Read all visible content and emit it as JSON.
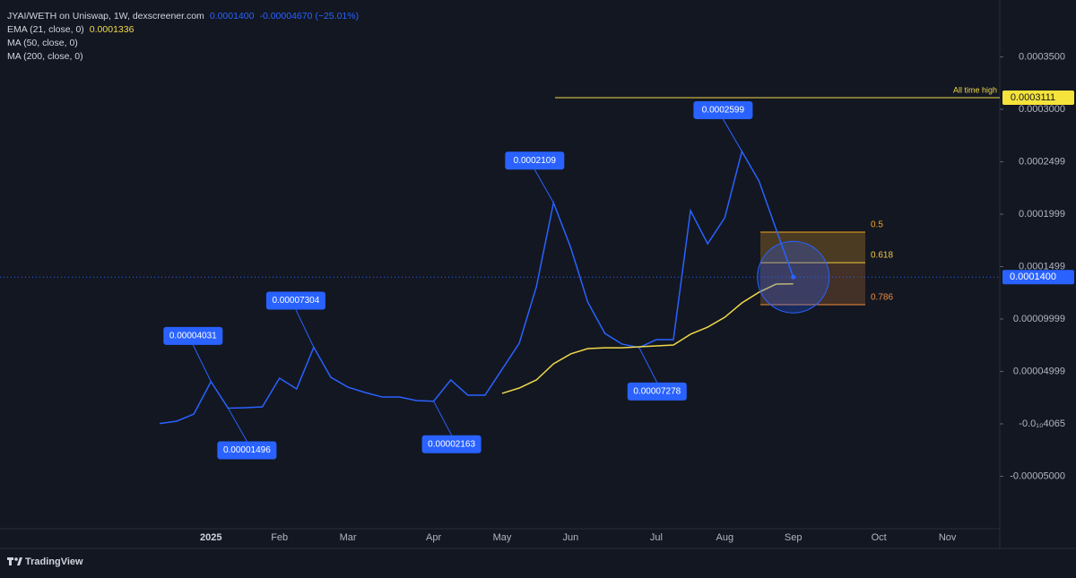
{
  "chart_data": {
    "type": "line",
    "title": "JYAI/WETH on Uniswap, 1W, dexscreener.com",
    "last_label": "0.0001400",
    "change_label": "-0.00004670 (−25.01%)",
    "other_indicators": [
      "MA (50, close, 0)",
      "MA (200, close, 0)"
    ],
    "categories": [
      null,
      null,
      null,
      "2025",
      null,
      null,
      null,
      "Feb",
      null,
      null,
      null,
      "Mar",
      null,
      null,
      null,
      null,
      "Apr",
      null,
      null,
      null,
      "May",
      null,
      null,
      null,
      "Jun",
      null,
      null,
      null,
      null,
      "Jul",
      null,
      null,
      null,
      "Aug",
      null,
      null,
      null,
      "Sep",
      null,
      null,
      null,
      null,
      "Oct",
      null,
      null,
      null,
      "Nov",
      null,
      null
    ],
    "series": [
      {
        "color": "#2962ff",
        "values": [
          3e-07,
          2.6e-06,
          9.4e-06,
          4.031e-05,
          1.496e-05,
          1.54e-05,
          1.62e-05,
          4.36e-05,
          3.33e-05,
          7.304e-05,
          4.44e-05,
          3.5e-05,
          2.99e-05,
          2.56e-05,
          2.56e-05,
          2.22e-05,
          2.163e-05,
          4.19e-05,
          2.74e-05,
          2.74e-05,
          5.21e-05,
          7.69e-05,
          0.0001308,
          0.0002109,
          0.0001684,
          0.0001162,
          8.63e-05,
          7.61e-05,
          7.278e-05,
          8.03e-05,
          8.03e-05,
          0.0002034,
          0.0001718,
          0.0001966,
          0.0002599,
          0.0002316,
          0.0001855,
          0.00014,
          null,
          null,
          null,
          null,
          null,
          null,
          null,
          null,
          null,
          null,
          null
        ]
      },
      {
        "name": "EMA (21, close, 0)",
        "last_label": "0.0001336",
        "color": "#f0d84a",
        "values": [
          null,
          null,
          null,
          null,
          null,
          null,
          null,
          null,
          null,
          null,
          null,
          null,
          null,
          null,
          null,
          null,
          null,
          null,
          null,
          null,
          2.91e-05,
          3.42e-05,
          4.19e-05,
          5.73e-05,
          6.67e-05,
          7.18e-05,
          7.26e-05,
          7.26e-05,
          7.35e-05,
          7.44e-05,
          7.52e-05,
          8.55e-05,
          9.23e-05,
          0.0001017,
          0.0001154,
          0.0001256,
          0.0001333,
          0.0001336,
          null,
          null,
          null,
          null,
          null,
          null,
          null,
          null,
          null,
          null,
          null
        ]
      }
    ],
    "ylim": [
      -0.0001,
      0.0004043
    ],
    "yticks": [
      {
        "value": 0.00035,
        "label": "0.0003500"
      },
      {
        "value": 0.0003,
        "label": "0.0003000"
      },
      {
        "value": 0.00025,
        "label": "0.0002499"
      },
      {
        "value": 0.0002,
        "label": "0.0001999"
      },
      {
        "value": 0.00015,
        "label": "0.0001499"
      },
      {
        "value": 0.0001,
        "label": "0.00009999"
      },
      {
        "value": 5e-05,
        "label": "0.00004999"
      },
      {
        "value": 0,
        "label": "-0.0₁₀4065"
      },
      {
        "value": -5e-05,
        "label": "-0.00005000"
      }
    ],
    "price_line": {
      "value": 0.00014,
      "label": "0.0001400"
    },
    "ath": {
      "text": "All time high",
      "value": 0.0003111,
      "label": "0.0003111"
    },
    "fib_levels": [
      {
        "ratio": 0.5,
        "value": 0.0001829,
        "color": "#f5a623"
      },
      {
        "ratio": 0.618,
        "value": 0.0001538,
        "color": "#f5c842"
      },
      {
        "ratio": 0.786,
        "value": 0.0001137,
        "color": "#f08c3c"
      }
    ]
  },
  "footer": {
    "brand": "TradingView"
  }
}
